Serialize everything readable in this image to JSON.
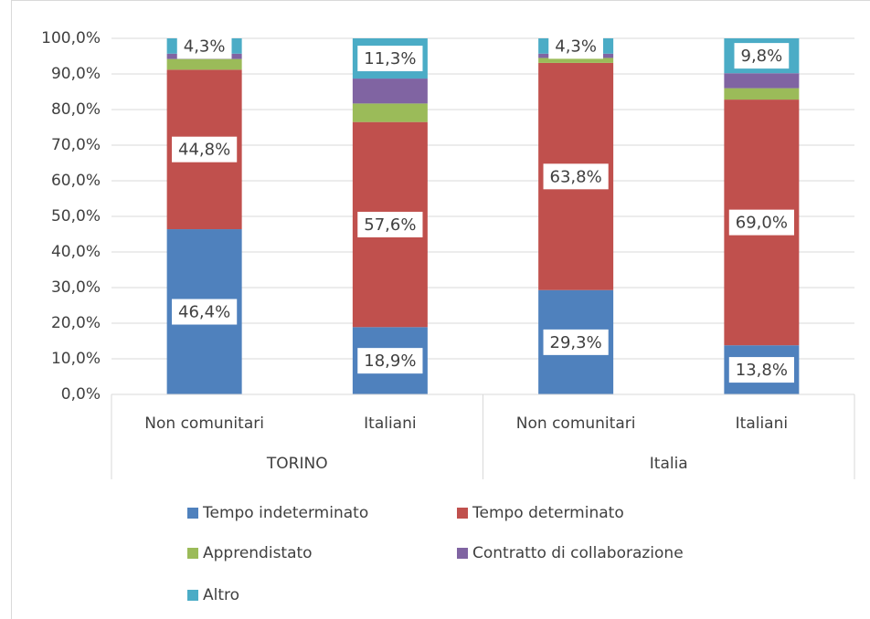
{
  "chart_data": {
    "type": "stacked_bar",
    "categories": [
      "Non comunitari",
      "Italiani",
      "Non comunitari",
      "Italiani"
    ],
    "groups": [
      "TORINO",
      "Italia"
    ],
    "ylim": [
      0,
      100
    ],
    "yticks": [
      {
        "value": 0,
        "label": "0,0%"
      },
      {
        "value": 10,
        "label": "10,0%"
      },
      {
        "value": 20,
        "label": "20,0%"
      },
      {
        "value": 30,
        "label": "30,0%"
      },
      {
        "value": 40,
        "label": "40,0%"
      },
      {
        "value": 50,
        "label": "50,0%"
      },
      {
        "value": 60,
        "label": "60,0%"
      },
      {
        "value": 70,
        "label": "70,0%"
      },
      {
        "value": 80,
        "label": "80,0%"
      },
      {
        "value": 90,
        "label": "90,0%"
      },
      {
        "value": 100,
        "label": "100,0%"
      }
    ],
    "grid": true,
    "series": [
      {
        "name": "Tempo indeterminato",
        "color": "#4f81bd",
        "values": [
          46.4,
          18.9,
          29.3,
          13.8
        ],
        "value_labels": [
          "46,4%",
          "18,9%",
          "29,3%",
          "13,8%"
        ]
      },
      {
        "name": "Tempo determinato",
        "color": "#c0504d",
        "values": [
          44.8,
          57.6,
          63.8,
          69.0
        ],
        "value_labels": [
          "44,8%",
          "57,6%",
          "63,8%",
          "69,0%"
        ]
      },
      {
        "name": "Apprendistato",
        "color": "#9bbb59",
        "values": [
          3.0,
          5.2,
          1.4,
          3.2
        ]
      },
      {
        "name": "Contratto di collaborazione",
        "color": "#8064a2",
        "values": [
          1.5,
          7.0,
          1.2,
          4.2
        ]
      },
      {
        "name": "Altro",
        "color": "#4bacc6",
        "values": [
          4.3,
          11.3,
          4.3,
          9.8
        ],
        "value_labels": [
          "4,3%",
          "11,3%",
          "4,3%",
          "9,8%"
        ]
      }
    ]
  }
}
